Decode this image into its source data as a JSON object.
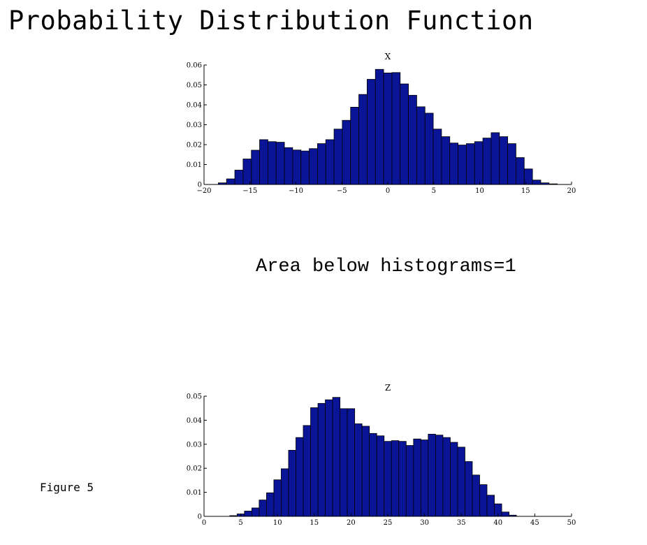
{
  "page": {
    "title": "Probability Distribution Function",
    "note": "Area below histograms=1",
    "figure_label": "Figure 5"
  },
  "chart_data": [
    {
      "type": "bar",
      "title": "X",
      "xlabel": "",
      "ylabel": "",
      "xlim": [
        -20,
        20
      ],
      "ylim": [
        0,
        0.06
      ],
      "bin_width": 0.9,
      "bin_start": -18.45,
      "x_ticks": [
        -20,
        -15,
        -10,
        -5,
        0,
        5,
        10,
        15,
        20
      ],
      "x_tick_labels": [
        "−20",
        "−15",
        "−10",
        "−5",
        "0",
        "5",
        "10",
        "15",
        "20"
      ],
      "y_ticks": [
        0,
        0.01,
        0.02,
        0.03,
        0.04,
        0.05,
        0.06
      ],
      "y_tick_labels": [
        "0",
        "0.01",
        "0.02",
        "0.03",
        "0.04",
        "0.05",
        "0.06"
      ],
      "values": [
        0.0008,
        0.0028,
        0.0072,
        0.0128,
        0.0172,
        0.0225,
        0.0215,
        0.0212,
        0.0185,
        0.0173,
        0.0168,
        0.018,
        0.0205,
        0.0225,
        0.0278,
        0.0322,
        0.0388,
        0.0452,
        0.0528,
        0.0578,
        0.056,
        0.0562,
        0.0505,
        0.0448,
        0.039,
        0.0358,
        0.0278,
        0.024,
        0.0208,
        0.0198,
        0.0205,
        0.0215,
        0.0233,
        0.026,
        0.024,
        0.0205,
        0.0135,
        0.0078,
        0.0022,
        0.0008,
        0.0003
      ],
      "bar_color": "#0a1496",
      "edge_color": "#000000",
      "grid": false
    },
    {
      "type": "bar",
      "title": "Z",
      "xlabel": "",
      "ylabel": "",
      "xlim": [
        0,
        50
      ],
      "ylim": [
        0,
        0.05
      ],
      "bin_width": 1,
      "bin_start": 3.5,
      "x_ticks": [
        0,
        5,
        10,
        15,
        20,
        25,
        30,
        35,
        40,
        45,
        50
      ],
      "x_tick_labels": [
        "0",
        "5",
        "10",
        "15",
        "20",
        "25",
        "30",
        "35",
        "40",
        "45",
        "50"
      ],
      "y_ticks": [
        0,
        0.01,
        0.02,
        0.03,
        0.04,
        0.05
      ],
      "y_tick_labels": [
        "0",
        "0.01",
        "0.02",
        "0.03",
        "0.04",
        "0.05"
      ],
      "values": [
        0.0003,
        0.001,
        0.0022,
        0.0035,
        0.0068,
        0.0098,
        0.0152,
        0.0198,
        0.0275,
        0.0328,
        0.0378,
        0.0452,
        0.047,
        0.0485,
        0.0495,
        0.0448,
        0.0448,
        0.0385,
        0.0375,
        0.0345,
        0.0335,
        0.0312,
        0.0315,
        0.0312,
        0.0295,
        0.0322,
        0.0318,
        0.0342,
        0.0338,
        0.0328,
        0.0308,
        0.0288,
        0.0228,
        0.0172,
        0.0132,
        0.0088,
        0.0052,
        0.0018,
        0.0005
      ],
      "bar_color": "#0a1496",
      "edge_color": "#000000",
      "grid": false
    }
  ]
}
